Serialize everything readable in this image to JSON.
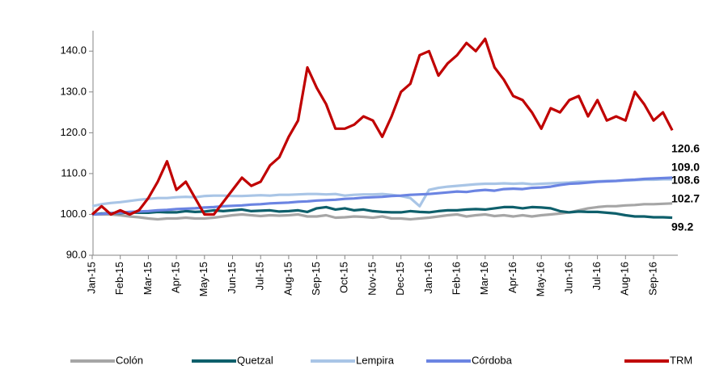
{
  "chart_data": {
    "type": "line",
    "categories": [
      "Jan-15",
      null,
      null,
      "Feb-15",
      null,
      null,
      "Mar-15",
      null,
      null,
      "Apr-15",
      null,
      null,
      "May-15",
      null,
      null,
      "Jun-15",
      null,
      null,
      "Jul-15",
      null,
      null,
      "Aug-15",
      null,
      null,
      "Sep-15",
      null,
      null,
      "Oct-15",
      null,
      null,
      "Nov-15",
      null,
      null,
      "Dec-15",
      null,
      null,
      "Jan-16",
      null,
      null,
      "Feb-16",
      null,
      null,
      "Mar-16",
      null,
      null,
      "Apr-16",
      null,
      null,
      "May-16",
      null,
      null,
      "Jun-16",
      null,
      null,
      "Jul-16",
      null,
      null,
      "Aug-16",
      null,
      null,
      "Sep-16",
      null,
      null
    ],
    "ylim": [
      90,
      145
    ],
    "yticks": [
      {
        "value": 90,
        "label": "90.0"
      },
      {
        "value": 100,
        "label": "100.0"
      },
      {
        "value": 110,
        "label": "110.0"
      },
      {
        "value": 120,
        "label": "120.0"
      },
      {
        "value": 130,
        "label": "130.0"
      },
      {
        "value": 140,
        "label": "140.0"
      }
    ],
    "grid": false,
    "legend": "bottom",
    "series": [
      {
        "name": "Colón",
        "color": "#a6a6a6",
        "end_label": "102.7",
        "label_color": "#ffc000",
        "values": [
          100,
          100,
          100,
          99.8,
          99.5,
          99.3,
          99,
          98.8,
          99,
          99,
          99.2,
          99,
          99,
          99.2,
          99.5,
          99.8,
          100,
          99.8,
          99.6,
          99.8,
          99.7,
          99.8,
          100,
          99.5,
          99.5,
          99.8,
          99.2,
          99.3,
          99.5,
          99.4,
          99.2,
          99.5,
          99,
          99,
          98.8,
          99,
          99.2,
          99.5,
          99.8,
          100,
          99.5,
          99.8,
          100,
          99.6,
          99.8,
          99.5,
          99.8,
          99.5,
          99.8,
          100,
          100.2,
          100.5,
          101,
          101.5,
          101.8,
          102,
          102,
          102.2,
          102.3,
          102.5,
          102.5,
          102.6,
          102.7
        ]
      },
      {
        "name": "Quetzal",
        "color": "#0e5f6b",
        "end_label": "99.2",
        "label_color": "#0e5f6b",
        "values": [
          100,
          100.2,
          100.3,
          100.3,
          100.5,
          100.4,
          100.4,
          100.6,
          100.5,
          100.5,
          100.8,
          100.6,
          100.7,
          101,
          100.8,
          101,
          101.2,
          100.8,
          100.9,
          101,
          100.7,
          100.8,
          101,
          100.6,
          101.5,
          101.8,
          101.2,
          101.5,
          101,
          101.2,
          100.8,
          100.6,
          100.5,
          100.5,
          100.8,
          100.6,
          100.5,
          100.8,
          101,
          101,
          101.2,
          101.3,
          101.2,
          101.5,
          101.8,
          101.8,
          101.5,
          101.8,
          101.7,
          101.5,
          100.8,
          100.5,
          100.7,
          100.6,
          100.6,
          100.4,
          100.2,
          99.8,
          99.5,
          99.5,
          99.3,
          99.3,
          99.2
        ]
      },
      {
        "name": "Lempira",
        "color": "#a9c5e6",
        "end_label": "108.6",
        "label_color": "#c5d7ef",
        "values": [
          102,
          102.5,
          102.8,
          103,
          103.3,
          103.6,
          103.8,
          104,
          104,
          104.2,
          104.3,
          104.2,
          104.5,
          104.6,
          104.6,
          104.5,
          104.5,
          104.6,
          104.7,
          104.6,
          104.8,
          104.8,
          104.9,
          105,
          105,
          104.9,
          105,
          104.6,
          104.8,
          104.9,
          104.9,
          105,
          104.8,
          104.5,
          104,
          102,
          106,
          106.5,
          106.8,
          107,
          107.2,
          107.4,
          107.5,
          107.5,
          107.6,
          107.5,
          107.6,
          107.4,
          107.5,
          107.6,
          107.7,
          107.8,
          108,
          108,
          108.1,
          108.2,
          108.2,
          108.3,
          108.4,
          108.5,
          108.5,
          108.6,
          108.6
        ]
      },
      {
        "name": "Córdoba",
        "color": "#6b84e2",
        "end_label": "109.0",
        "label_color": "#7030a0",
        "values": [
          100.0,
          100.1,
          100.3,
          100.4,
          100.6,
          100.7,
          100.8,
          101.0,
          101.1,
          101.3,
          101.4,
          101.5,
          101.7,
          101.8,
          102.0,
          102.1,
          102.2,
          102.4,
          102.5,
          102.7,
          102.8,
          102.9,
          103.1,
          103.2,
          103.4,
          103.5,
          103.6,
          103.8,
          103.9,
          104.1,
          104.2,
          104.3,
          104.5,
          104.6,
          104.8,
          104.9,
          105.0,
          105.2,
          105.4,
          105.6,
          105.5,
          105.8,
          106.0,
          105.8,
          106.2,
          106.3,
          106.2,
          106.5,
          106.6,
          106.8,
          107.2,
          107.5,
          107.6,
          107.8,
          108.0,
          108.1,
          108.2,
          108.4,
          108.5,
          108.7,
          108.8,
          108.9,
          109.0
        ]
      },
      {
        "name": "TRM",
        "color": "#c00000",
        "end_label": "120.6",
        "label_color": "#c00000",
        "values": [
          100,
          102,
          100,
          101,
          100,
          101,
          104,
          108,
          113,
          106,
          108,
          104,
          100,
          100,
          103,
          106,
          109,
          107,
          108,
          112,
          114,
          119,
          123,
          136,
          131,
          127,
          121,
          121,
          122,
          124,
          123,
          119,
          124,
          130,
          132,
          139,
          140,
          134,
          137,
          139,
          142,
          140,
          143,
          136,
          133,
          129,
          128,
          125,
          121,
          126,
          125,
          128,
          129,
          124,
          128,
          123,
          124,
          123,
          130,
          127,
          123,
          125,
          120.6
        ]
      }
    ]
  }
}
